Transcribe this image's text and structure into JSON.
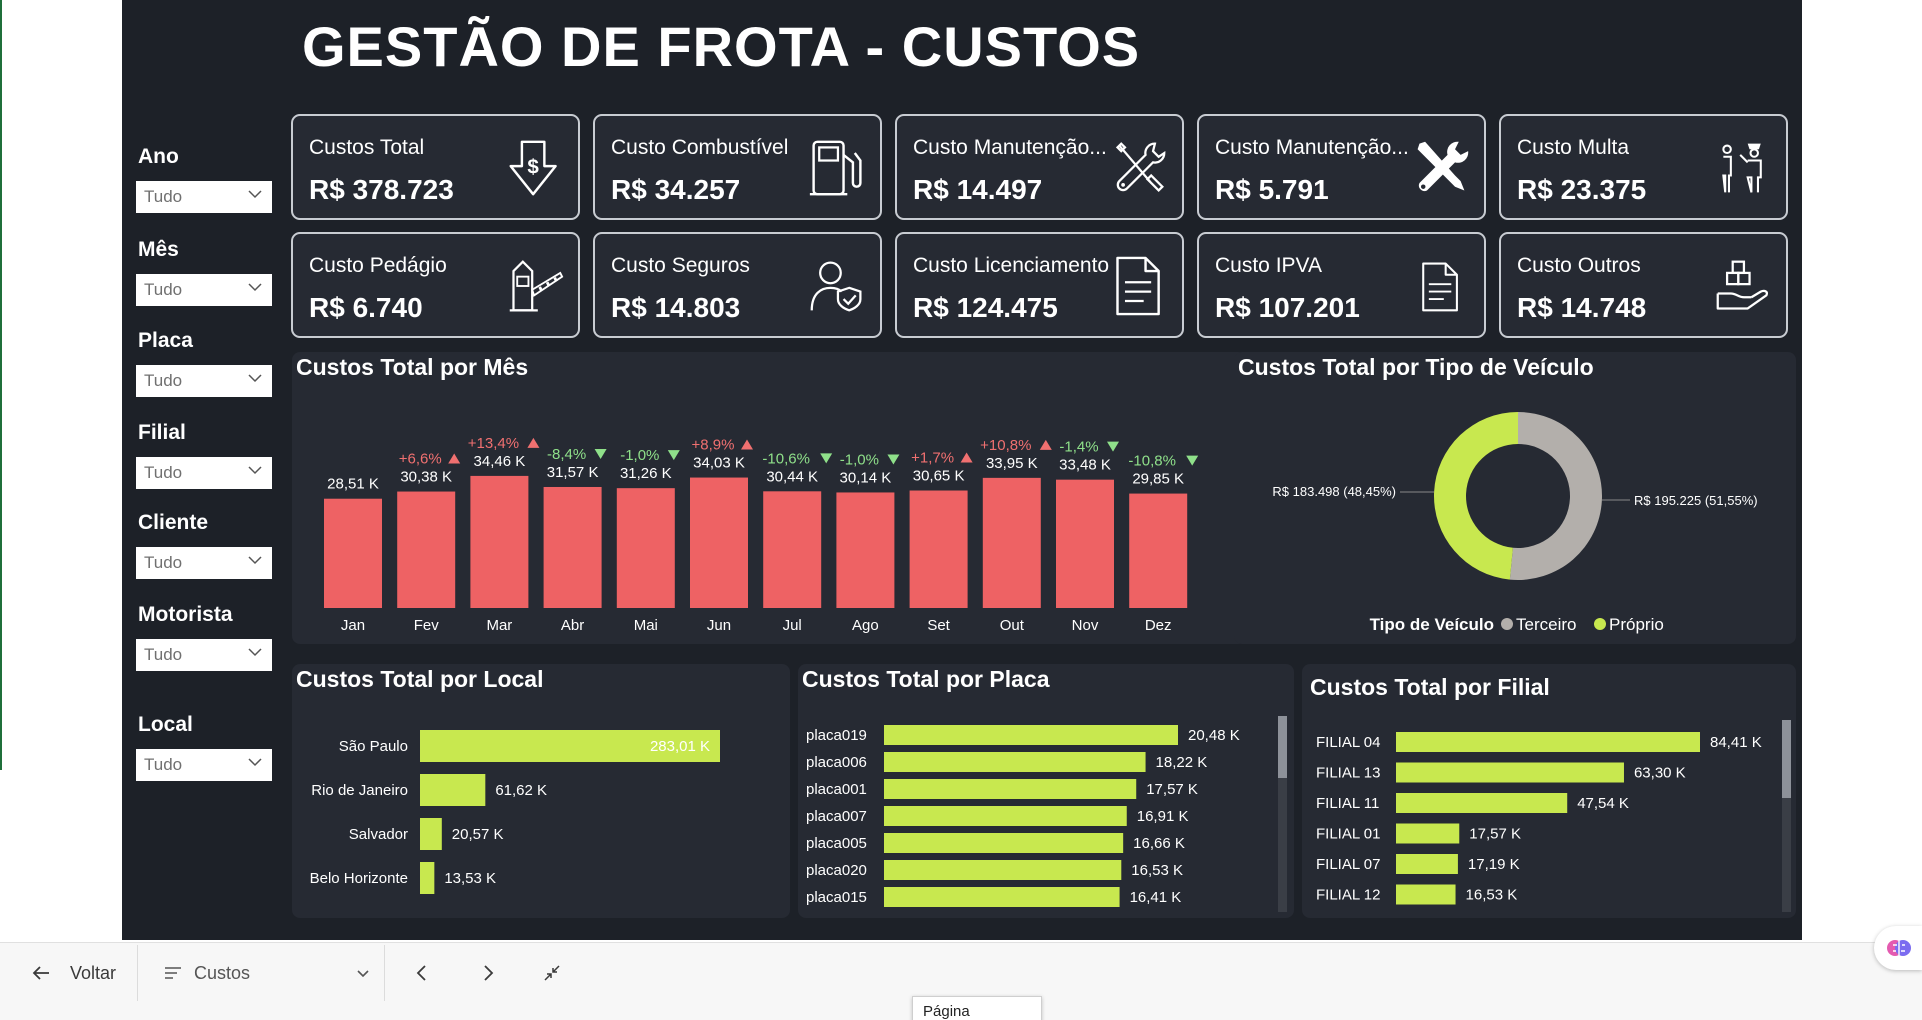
{
  "page": {
    "title": "GESTÃO DE FROTA - CUSTOS"
  },
  "filters": [
    {
      "label": "Ano",
      "value": "Tudo"
    },
    {
      "label": "Mês",
      "value": "Tudo"
    },
    {
      "label": "Placa",
      "value": "Tudo"
    },
    {
      "label": "Filial",
      "value": "Tudo"
    },
    {
      "label": "Cliente",
      "value": "Tudo"
    },
    {
      "label": "Motorista",
      "value": "Tudo"
    },
    {
      "label": "Local",
      "value": "Tudo"
    }
  ],
  "kpis": [
    {
      "label": "Custos Total",
      "value": "R$ 378.723",
      "icon": "dollar-down-arrow-icon"
    },
    {
      "label": "Custo Combustível",
      "value": "R$ 34.257",
      "icon": "fuel-pump-icon"
    },
    {
      "label": "Custo Manutenção...",
      "value": "R$ 14.497",
      "icon": "wrench-screwdriver-outline-icon"
    },
    {
      "label": "Custo Manutenção...",
      "value": "R$ 5.791",
      "icon": "wrench-screwdriver-filled-icon"
    },
    {
      "label": "Custo Multa",
      "value": "R$ 23.375",
      "icon": "traffic-officer-icon"
    },
    {
      "label": "Custo Pedágio",
      "value": "R$ 6.740",
      "icon": "toll-gate-icon"
    },
    {
      "label": "Custo Seguros",
      "value": "R$ 14.803",
      "icon": "person-shield-icon"
    },
    {
      "label": "Custo Licenciamento",
      "value": "R$ 124.475",
      "icon": "document-icon"
    },
    {
      "label": "Custo IPVA",
      "value": "R$ 107.201",
      "icon": "document-small-icon"
    },
    {
      "label": "Custo Outros",
      "value": "R$ 14.748",
      "icon": "hand-boxes-icon"
    }
  ],
  "colors": {
    "background": "#1d2128",
    "panel": "#262a33",
    "bar_red": "#ee6264",
    "bar_green": "#c8e84f",
    "gray": "#b3afab",
    "up_red": "#f07070",
    "down_green": "#8fe08a"
  },
  "charts": {
    "monthly": {
      "title": "Custos Total por Mês"
    },
    "vehicle_type": {
      "title": "Custos Total por Tipo de Veículo",
      "legend_title": "Tipo de Veículo"
    },
    "local": {
      "title": "Custos Total por Local"
    },
    "placa": {
      "title": "Custos Total por Placa"
    },
    "filial": {
      "title": "Custos Total por Filial"
    }
  },
  "chart_data": [
    {
      "type": "bar",
      "title": "Custos Total por Mês",
      "categories": [
        "Jan",
        "Fev",
        "Mar",
        "Abr",
        "Mai",
        "Jun",
        "Jul",
        "Ago",
        "Set",
        "Out",
        "Nov",
        "Dez"
      ],
      "values": [
        28.51,
        30.38,
        34.46,
        31.57,
        31.26,
        34.03,
        30.44,
        30.14,
        30.65,
        33.95,
        33.48,
        29.85
      ],
      "data_labels": [
        "28,51 K",
        "30,38 K",
        "34,46 K",
        "31,57 K",
        "31,26 K",
        "34,03 K",
        "30,44 K",
        "30,14 K",
        "30,65 K",
        "33,95 K",
        "33,48 K",
        "29,85 K"
      ],
      "changes": [
        "",
        "+6,6%",
        "+13,4%",
        "-8,4%",
        "-1,0%",
        "+8,9%",
        "-10,6%",
        "-1,0%",
        "+1,7%",
        "+10,8%",
        "-1,4%",
        "-10,8%"
      ],
      "change_dir": [
        "",
        "up",
        "up",
        "down",
        "down",
        "up",
        "down",
        "down",
        "up",
        "up",
        "down",
        "down"
      ],
      "ylim": [
        0,
        36
      ]
    },
    {
      "type": "pie",
      "title": "Custos Total por Tipo de Veículo",
      "legend_title": "Tipo de Veículo",
      "slices": [
        {
          "name": "Terceiro",
          "value": 195225,
          "label": "R$ 195.225 (51,55%)",
          "color": "#b3afab"
        },
        {
          "name": "Próprio",
          "value": 183498,
          "label": "R$ 183.498 (48,45%)",
          "color": "#c8e84f"
        }
      ],
      "legend_position": "bottom"
    },
    {
      "type": "bar",
      "orientation": "horizontal",
      "title": "Custos Total por Local",
      "categories": [
        "São Paulo",
        "Rio de Janeiro",
        "Salvador",
        "Belo Horizonte"
      ],
      "values": [
        283.01,
        61.62,
        20.57,
        13.53
      ],
      "data_labels": [
        "283,01 K",
        "61,62 K",
        "20,57 K",
        "13,53 K"
      ]
    },
    {
      "type": "bar",
      "orientation": "horizontal",
      "title": "Custos Total por Placa",
      "categories": [
        "placa019",
        "placa006",
        "placa001",
        "placa007",
        "placa005",
        "placa020",
        "placa015"
      ],
      "values": [
        20.48,
        18.22,
        17.57,
        16.91,
        16.66,
        16.53,
        16.41
      ],
      "data_labels": [
        "20,48 K",
        "18,22 K",
        "17,57 K",
        "16,91 K",
        "16,66 K",
        "16,53 K",
        "16,41 K"
      ]
    },
    {
      "type": "bar",
      "orientation": "horizontal",
      "title": "Custos Total por Filial",
      "categories": [
        "FILIAL 04",
        "FILIAL 13",
        "FILIAL 11",
        "FILIAL 01",
        "FILIAL 07",
        "FILIAL 12"
      ],
      "values": [
        84.41,
        63.3,
        47.54,
        17.57,
        17.19,
        16.53
      ],
      "data_labels": [
        "84,41 K",
        "63,30 K",
        "47,54 K",
        "17,57 K",
        "17,19 K",
        "16,53 K"
      ]
    }
  ],
  "bottombar": {
    "back_label": "Voltar",
    "page_select_label": "Custos",
    "tooltip": "Página Seguinte"
  }
}
